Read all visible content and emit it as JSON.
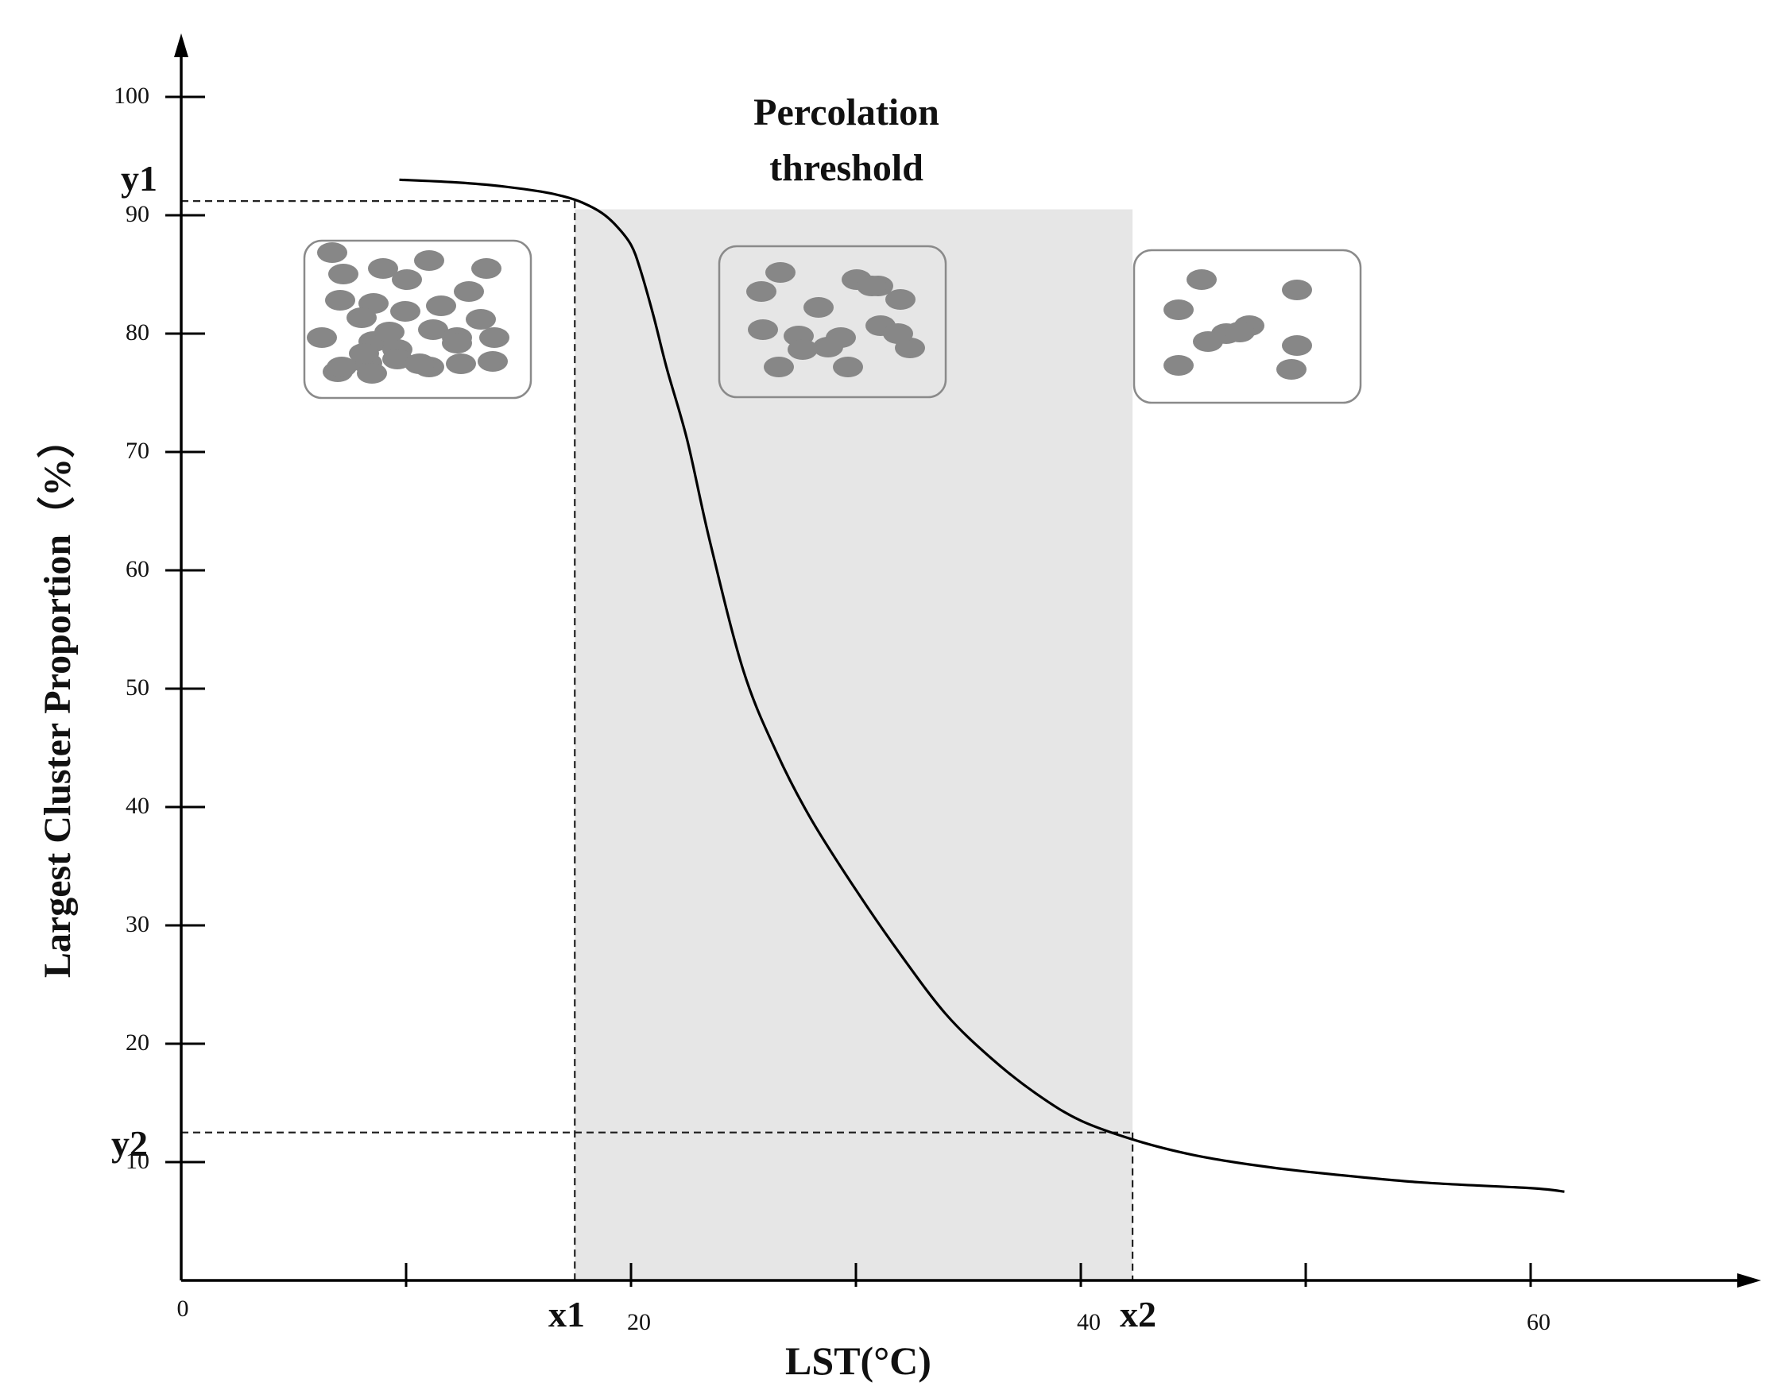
{
  "chart_data": {
    "type": "line",
    "title": "Percolation\nthreshold",
    "title_lines": [
      "Percolation",
      "threshold"
    ],
    "xlabel": "LST(°C)",
    "ylabel": "Largest Cluster Proportion（%）",
    "xlim": [
      0,
      70
    ],
    "ylim": [
      0,
      100
    ],
    "x_ticks": [
      0,
      10,
      20,
      30,
      40,
      50,
      60
    ],
    "x_tick_labels": [
      "0",
      "",
      "20",
      "",
      "40",
      "",
      "60"
    ],
    "y_ticks": [
      10,
      20,
      30,
      40,
      50,
      60,
      70,
      80,
      90,
      100
    ],
    "y_tick_labels": [
      "10",
      "20",
      "30",
      "40",
      "50",
      "60",
      "70",
      "80",
      "90",
      "100"
    ],
    "grid": false,
    "series": [
      {
        "x": [
          9.7,
          12,
          14,
          16,
          17,
          17.8,
          18.7,
          19.4,
          20,
          20.4,
          21,
          21.6,
          22.5,
          23.5,
          25,
          26.5,
          28,
          30,
          32,
          34,
          36,
          38,
          40,
          42.5,
          45,
          47.5,
          50,
          55,
          60,
          61.5
        ],
        "y": [
          93.0,
          92.8,
          92.5,
          92.0,
          91.6,
          91.1,
          90.2,
          89.0,
          87.5,
          85.5,
          81.5,
          77.0,
          71.0,
          62.5,
          51.5,
          44.5,
          39.0,
          33.0,
          27.5,
          22.5,
          18.8,
          15.8,
          13.5,
          11.8,
          10.6,
          9.8,
          9.2,
          8.3,
          7.8,
          7.5
        ],
        "color": "#000000"
      }
    ],
    "shaded_region": {
      "x": [
        17.5,
        42.3
      ],
      "y": [
        0,
        90.5
      ],
      "color": "#e6e6e6"
    },
    "reference_lines": {
      "x1": {
        "label": "x1",
        "x": 17.5,
        "y": 91.2
      },
      "x2": {
        "label": "x2",
        "x": 42.3,
        "y": 12.5
      },
      "y1": {
        "label": "y1",
        "y": 91.2
      },
      "y2": {
        "label": "y2",
        "y": 12.5
      }
    },
    "insets": [
      {
        "stage": "dense",
        "patch_count": 31
      },
      {
        "stage": "medium",
        "patch_count": 17
      },
      {
        "stage": "sparse",
        "patch_count": 10
      }
    ]
  }
}
